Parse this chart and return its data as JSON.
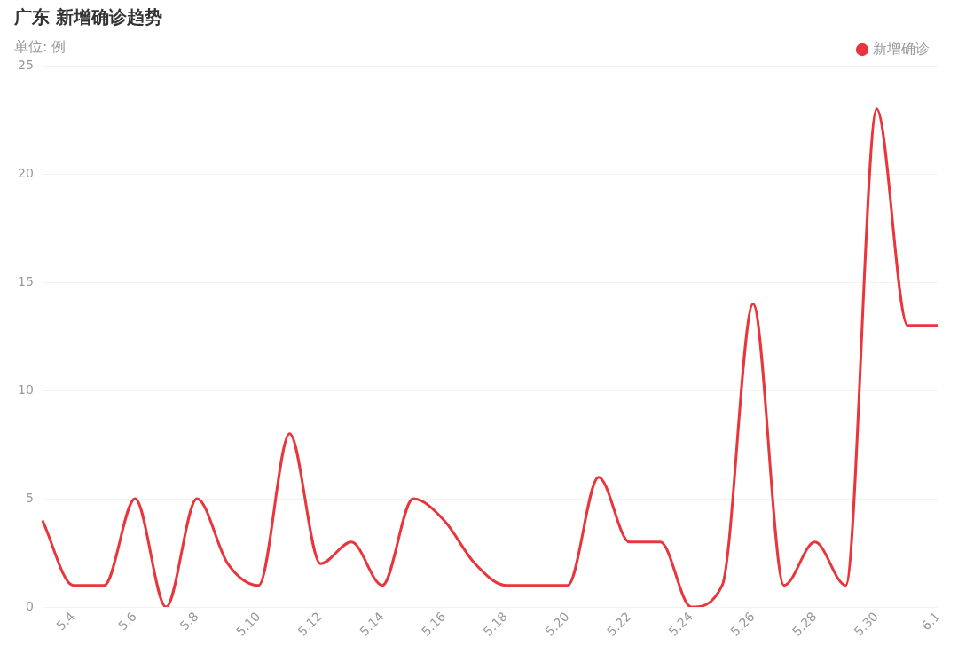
{
  "chart_data": {
    "type": "line",
    "title": "广东 新增确诊趋势",
    "subtitle": "单位: 例",
    "categories": [
      null,
      "5.4",
      null,
      "5.6",
      null,
      "5.8",
      null,
      "5.10",
      null,
      "5.12",
      null,
      "5.14",
      null,
      "5.16",
      null,
      "5.18",
      null,
      "5.20",
      null,
      "5.22",
      null,
      "5.24",
      null,
      "5.26",
      null,
      "5.28",
      null,
      "5.30",
      null,
      "6.1"
    ],
    "series": [
      {
        "name": "新增确诊",
        "color": "#e8363c",
        "values": [
          4,
          1,
          1,
          5,
          0,
          5,
          2,
          1,
          8,
          2,
          3,
          1,
          5,
          4,
          2,
          1,
          1,
          1,
          6,
          3,
          3,
          0,
          1,
          14,
          1,
          3,
          1,
          23,
          13,
          13
        ]
      }
    ],
    "ylim": [
      0,
      25
    ],
    "yticks": [
      0,
      5,
      10,
      15,
      20,
      25
    ],
    "grid": "y",
    "legend": "top right",
    "marker": "none",
    "line_style": "solid"
  }
}
